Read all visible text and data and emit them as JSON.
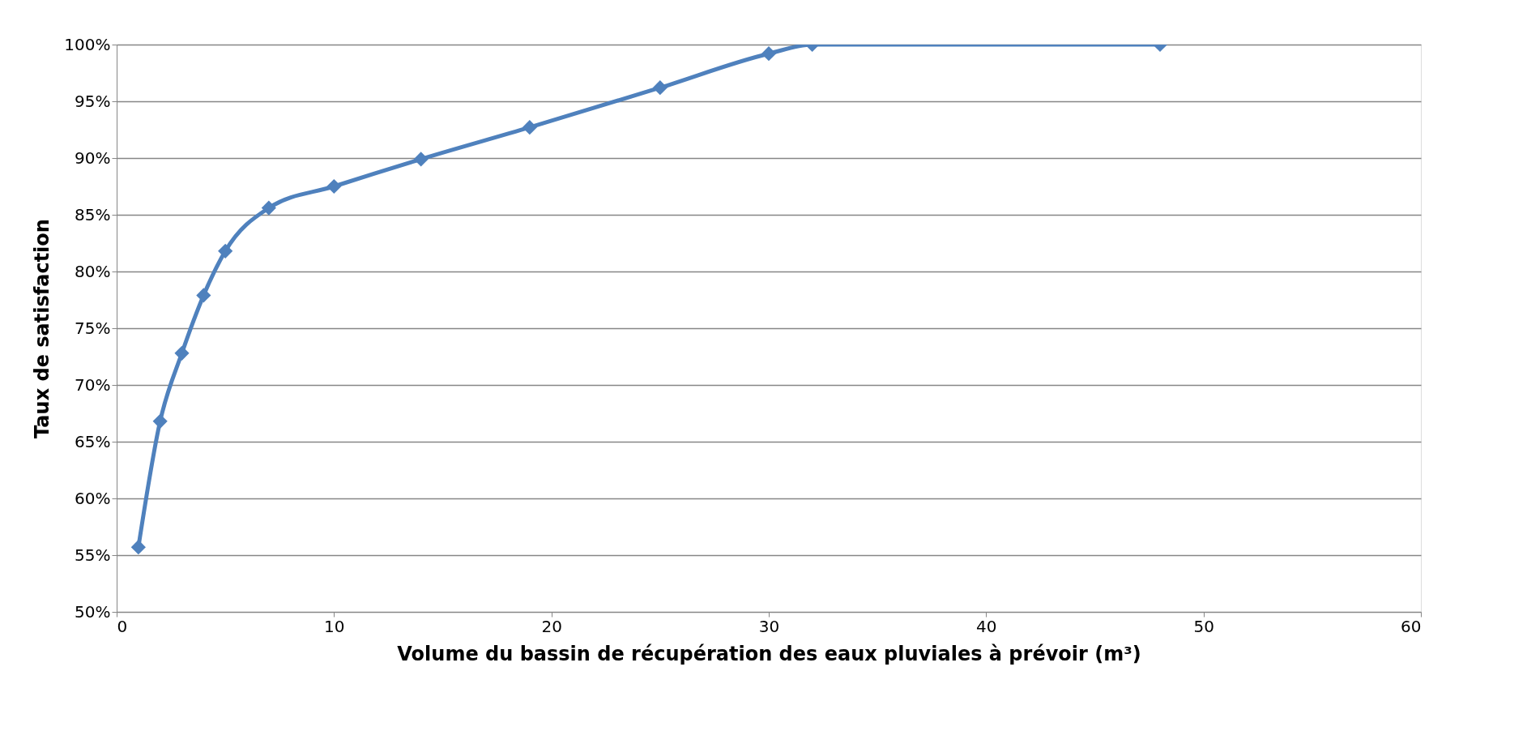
{
  "chart_data": {
    "type": "line",
    "xlabel": "Volume du bassin de récupération des eaux pluviales à prévoir (m³)",
    "ylabel": "Taux de satisfaction",
    "x": [
      1,
      2,
      3,
      4,
      5,
      7,
      10,
      14,
      19,
      25,
      30,
      32,
      48
    ],
    "series": [
      {
        "color": "#4f81bd",
        "values": [
          55.7,
          66.8,
          72.8,
          77.9,
          81.8,
          85.6,
          87.5,
          89.9,
          92.7,
          96.2,
          99.2,
          100,
          100
        ]
      }
    ],
    "xlim": [
      0,
      60
    ],
    "xticks": [
      0,
      10,
      20,
      30,
      40,
      50,
      60
    ],
    "ylim": [
      50,
      100
    ],
    "yticks": [
      {
        "value": 50,
        "label": "50%"
      },
      {
        "value": 55,
        "label": "55%"
      },
      {
        "value": 60,
        "label": "60%"
      },
      {
        "value": 65,
        "label": "65%"
      },
      {
        "value": 70,
        "label": "70%"
      },
      {
        "value": 75,
        "label": "75%"
      },
      {
        "value": 80,
        "label": "80%"
      },
      {
        "value": 85,
        "label": "85%"
      },
      {
        "value": 90,
        "label": "90%"
      },
      {
        "value": 95,
        "label": "95%"
      },
      {
        "value": 100,
        "label": "100%"
      }
    ],
    "grid": "y",
    "marker": "diamond",
    "line_style": "solid"
  }
}
